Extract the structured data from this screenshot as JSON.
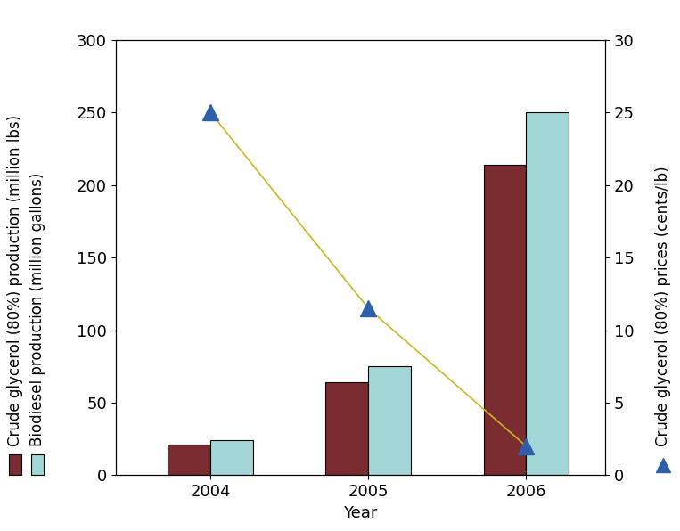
{
  "chart_data": {
    "type": "bar",
    "x_label": "Year",
    "categories": [
      "2004",
      "2005",
      "2006"
    ],
    "series": [
      {
        "name": "Crude glycerol (80%) production (million lbs)",
        "type": "bar",
        "color": "#7a2c30",
        "values": [
          21,
          64,
          214
        ]
      },
      {
        "name": "Biodiesel production (million gallons)",
        "type": "bar",
        "color": "#a3d6d6",
        "values": [
          24,
          75,
          250
        ]
      },
      {
        "name": "Crude glycerol (80%) prices (cents/lb)",
        "type": "line",
        "axis": "y2",
        "color": "#2f5fa8",
        "marker": "triangle",
        "values": [
          25,
          11.5,
          2
        ]
      }
    ],
    "ylim": [
      0,
      300
    ],
    "yticks": [
      0,
      50,
      100,
      150,
      200,
      250,
      300
    ],
    "y2lim": [
      0,
      30
    ],
    "y2ticks": [
      0,
      5,
      10,
      15,
      20,
      25,
      30
    ]
  }
}
